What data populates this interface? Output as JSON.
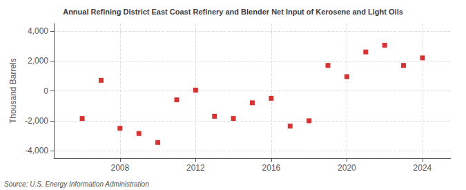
{
  "chart_data": {
    "type": "scatter",
    "title": "Annual Refining District East Coast Refinery and Blender Net Input of Kerosene and Light Oils",
    "ylabel": "Thousand Barrels",
    "source": "Source: U.S. Energy Information Administration",
    "x": [
      2006,
      2007,
      2008,
      2009,
      2010,
      2011,
      2012,
      2013,
      2014,
      2015,
      2016,
      2017,
      2018,
      2019,
      2020,
      2021,
      2022,
      2023,
      2024
    ],
    "values": [
      -1850,
      700,
      -2500,
      -2850,
      -3450,
      -600,
      50,
      -1700,
      -1850,
      -800,
      -500,
      -2350,
      -2000,
      1700,
      950,
      2600,
      3050,
      1700,
      2200
    ],
    "color": "#cc0000",
    "marker": "square",
    "xlim": [
      2004.5,
      2025.5
    ],
    "xticks": [
      2008,
      2012,
      2016,
      2020,
      2024
    ],
    "ylim": [
      -4500,
      4500
    ],
    "yticks": [
      {
        "value": -4000,
        "label": "-4,000"
      },
      {
        "value": -2000,
        "label": "-2,000"
      },
      0,
      {
        "value": 2000,
        "label": "2,000"
      },
      {
        "value": 4000,
        "label": "4,000"
      }
    ],
    "grid": true
  }
}
